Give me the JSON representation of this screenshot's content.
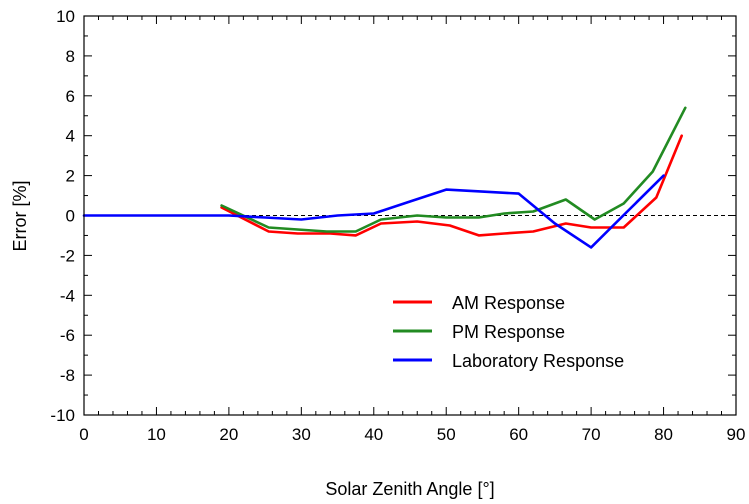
{
  "chart_data": {
    "type": "line",
    "title": "",
    "xlabel": "Solar Zenith Angle [°]",
    "ylabel": "Error [%]",
    "xlim": [
      0,
      90
    ],
    "ylim": [
      -10,
      10
    ],
    "xticks": [
      0,
      10,
      20,
      30,
      40,
      50,
      60,
      70,
      80,
      90
    ],
    "yticks": [
      -10,
      -8,
      -6,
      -4,
      -2,
      0,
      2,
      4,
      6,
      8,
      10
    ],
    "grid": false,
    "reference_line": {
      "y": 0,
      "style": "dashed"
    },
    "legend": {
      "position": "bottom-right"
    },
    "series": [
      {
        "name": "AM Response",
        "color": "#ff0000",
        "x": [
          19,
          25.5,
          29.5,
          34,
          37.5,
          41,
          46,
          50.5,
          54.5,
          58,
          62,
          66.5,
          70,
          74.5,
          79,
          82.5
        ],
        "y": [
          0.4,
          -0.8,
          -0.9,
          -0.9,
          -1.0,
          -0.4,
          -0.3,
          -0.5,
          -1.0,
          -0.9,
          -0.8,
          -0.4,
          -0.6,
          -0.6,
          0.9,
          4.0
        ]
      },
      {
        "name": "PM Response",
        "color": "#228b22",
        "x": [
          19,
          25.5,
          29.5,
          33.5,
          37.5,
          41,
          46,
          50,
          54.5,
          58,
          62,
          66.5,
          70.5,
          74.5,
          78.5,
          83
        ],
        "y": [
          0.5,
          -0.6,
          -0.7,
          -0.8,
          -0.8,
          -0.2,
          0.0,
          -0.1,
          -0.1,
          0.1,
          0.2,
          0.8,
          -0.2,
          0.6,
          2.2,
          5.4
        ]
      },
      {
        "name": "Laboratory Response",
        "color": "#0000ff",
        "x": [
          0,
          20,
          25,
          30,
          35,
          40,
          45,
          50,
          55,
          60,
          65,
          70,
          75,
          80
        ],
        "y": [
          0.0,
          0.0,
          -0.1,
          -0.2,
          0.0,
          0.1,
          0.7,
          1.3,
          1.2,
          1.1,
          -0.4,
          -1.6,
          0.2,
          2.0
        ]
      }
    ]
  }
}
